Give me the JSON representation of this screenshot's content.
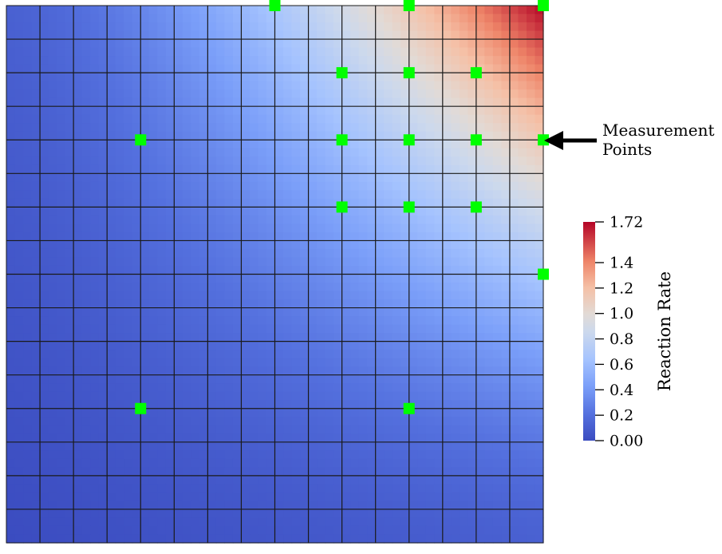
{
  "annotation": {
    "line1": "Measurement",
    "line2": "Points"
  },
  "colorbar": {
    "title": "Reaction Rate",
    "min": 0.0,
    "max": 1.72,
    "ticks": [
      {
        "value": 1.72,
        "label": "1.72"
      },
      {
        "value": 1.4,
        "label": "1.4"
      },
      {
        "value": 1.2,
        "label": "1.2"
      },
      {
        "value": 1.0,
        "label": "1.0"
      },
      {
        "value": 0.8,
        "label": "0.8"
      },
      {
        "value": 0.6,
        "label": "0.6"
      },
      {
        "value": 0.4,
        "label": "0.4"
      },
      {
        "value": 0.2,
        "label": "0.2"
      },
      {
        "value": 0.0,
        "label": "0.00"
      }
    ],
    "colors": {
      "low": "#3b4cc0",
      "mid": "#dddddd",
      "high": "#b40426"
    }
  },
  "mesh": {
    "cells_x": 16,
    "cells_y": 16,
    "line_color": "#1a1a1a"
  },
  "measurement_points": {
    "color": "#00ff00",
    "points": [
      {
        "i": 8,
        "j": 16
      },
      {
        "i": 12,
        "j": 16
      },
      {
        "i": 16,
        "j": 16
      },
      {
        "i": 10,
        "j": 14
      },
      {
        "i": 12,
        "j": 14
      },
      {
        "i": 14,
        "j": 14
      },
      {
        "i": 4,
        "j": 12
      },
      {
        "i": 10,
        "j": 12
      },
      {
        "i": 12,
        "j": 12
      },
      {
        "i": 14,
        "j": 12
      },
      {
        "i": 16,
        "j": 12
      },
      {
        "i": 10,
        "j": 10
      },
      {
        "i": 12,
        "j": 10
      },
      {
        "i": 14,
        "j": 10
      },
      {
        "i": 16,
        "j": 8
      },
      {
        "i": 4,
        "j": 4
      },
      {
        "i": 12,
        "j": 4
      }
    ]
  }
}
